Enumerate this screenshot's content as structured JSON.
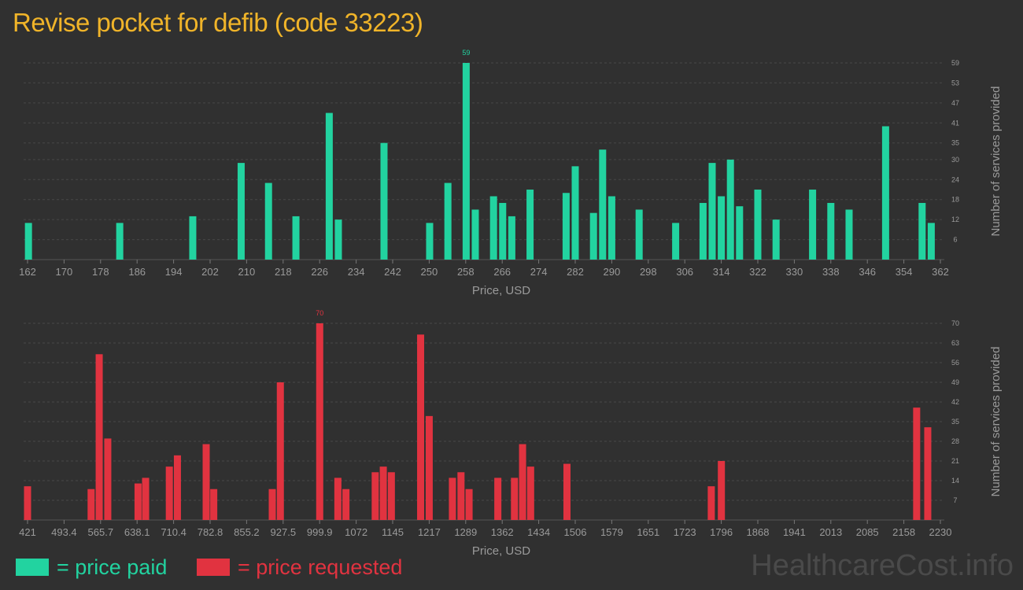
{
  "page": {
    "title": "Revise pocket for defib (code 33223)",
    "brand": "HealthcareCost.info"
  },
  "legend": {
    "paid_label": "= price paid",
    "requested_label": "= price requested"
  },
  "colors": {
    "paid": "#22d3a0",
    "requested": "#e13340",
    "title": "#f0b429",
    "background": "#303030"
  },
  "chart_data": [
    {
      "type": "bar",
      "series_name": "price paid",
      "xlabel": "Price, USD",
      "ylabel": "Number of services provided",
      "xlim": [
        162,
        362
      ],
      "ylim": [
        0,
        59
      ],
      "x_ticks": [
        "162",
        "170",
        "178",
        "186",
        "194",
        "202",
        "210",
        "218",
        "226",
        "234",
        "242",
        "250",
        "258",
        "266",
        "274",
        "282",
        "290",
        "298",
        "306",
        "314",
        "322",
        "330",
        "338",
        "346",
        "354",
        "362"
      ],
      "y_ticks": [
        6,
        12,
        18,
        24,
        30,
        35,
        41,
        47,
        53,
        59
      ],
      "max_label": "59",
      "grid": true,
      "points": [
        {
          "x": 162.2,
          "y": 11
        },
        {
          "x": 182.2,
          "y": 11
        },
        {
          "x": 198.2,
          "y": 13
        },
        {
          "x": 208.8,
          "y": 29
        },
        {
          "x": 214.8,
          "y": 23
        },
        {
          "x": 220.8,
          "y": 13
        },
        {
          "x": 228.1,
          "y": 44
        },
        {
          "x": 230.1,
          "y": 12
        },
        {
          "x": 240.1,
          "y": 35
        },
        {
          "x": 250.1,
          "y": 11
        },
        {
          "x": 254.1,
          "y": 23
        },
        {
          "x": 258.1,
          "y": 59
        },
        {
          "x": 260.1,
          "y": 15
        },
        {
          "x": 264.1,
          "y": 19
        },
        {
          "x": 266.1,
          "y": 17
        },
        {
          "x": 268.1,
          "y": 13
        },
        {
          "x": 272.1,
          "y": 21
        },
        {
          "x": 280.0,
          "y": 20
        },
        {
          "x": 282.0,
          "y": 28
        },
        {
          "x": 286.0,
          "y": 14
        },
        {
          "x": 288.0,
          "y": 33
        },
        {
          "x": 290.0,
          "y": 19
        },
        {
          "x": 296.0,
          "y": 15
        },
        {
          "x": 304.0,
          "y": 11
        },
        {
          "x": 310.0,
          "y": 17
        },
        {
          "x": 312.0,
          "y": 29
        },
        {
          "x": 314.0,
          "y": 19
        },
        {
          "x": 316.0,
          "y": 30
        },
        {
          "x": 318.0,
          "y": 16
        },
        {
          "x": 322.0,
          "y": 21
        },
        {
          "x": 326.0,
          "y": 12
        },
        {
          "x": 334.0,
          "y": 21
        },
        {
          "x": 338.0,
          "y": 17
        },
        {
          "x": 342.0,
          "y": 15
        },
        {
          "x": 350.0,
          "y": 40
        },
        {
          "x": 358.0,
          "y": 17
        },
        {
          "x": 360.0,
          "y": 11
        }
      ]
    },
    {
      "type": "bar",
      "series_name": "price requested",
      "xlabel": "Price, USD",
      "ylabel": "Number of services provided",
      "xlim": [
        421,
        2230
      ],
      "ylim": [
        0,
        70
      ],
      "x_ticks": [
        "421",
        "493.4",
        "565.7",
        "638.1",
        "710.4",
        "782.8",
        "855.2",
        "927.5",
        "999.9",
        "1072",
        "1145",
        "1217",
        "1289",
        "1362",
        "1434",
        "1506",
        "1579",
        "1651",
        "1723",
        "1796",
        "1868",
        "1941",
        "2013",
        "2085",
        "2158",
        "2230"
      ],
      "y_ticks": [
        7,
        14,
        21,
        28,
        35,
        42,
        49,
        56,
        63,
        70
      ],
      "max_label": "70",
      "grid": true,
      "points": [
        {
          "x": 421,
          "y": 12
        },
        {
          "x": 547,
          "y": 11
        },
        {
          "x": 563,
          "y": 59
        },
        {
          "x": 580,
          "y": 29
        },
        {
          "x": 640,
          "y": 13
        },
        {
          "x": 655,
          "y": 15
        },
        {
          "x": 702,
          "y": 19
        },
        {
          "x": 718,
          "y": 23
        },
        {
          "x": 775,
          "y": 27
        },
        {
          "x": 790,
          "y": 11
        },
        {
          "x": 906,
          "y": 11
        },
        {
          "x": 922,
          "y": 49
        },
        {
          "x": 1000,
          "y": 70
        },
        {
          "x": 1036,
          "y": 15
        },
        {
          "x": 1052,
          "y": 11
        },
        {
          "x": 1110,
          "y": 17
        },
        {
          "x": 1126,
          "y": 19
        },
        {
          "x": 1142,
          "y": 17
        },
        {
          "x": 1200,
          "y": 66
        },
        {
          "x": 1217,
          "y": 37
        },
        {
          "x": 1263,
          "y": 15
        },
        {
          "x": 1280,
          "y": 17
        },
        {
          "x": 1296,
          "y": 11
        },
        {
          "x": 1353,
          "y": 15
        },
        {
          "x": 1386,
          "y": 15
        },
        {
          "x": 1402,
          "y": 27
        },
        {
          "x": 1418,
          "y": 19
        },
        {
          "x": 1490,
          "y": 20
        },
        {
          "x": 1776,
          "y": 12
        },
        {
          "x": 1796,
          "y": 21
        },
        {
          "x": 2183,
          "y": 40
        },
        {
          "x": 2205,
          "y": 33
        }
      ]
    }
  ]
}
